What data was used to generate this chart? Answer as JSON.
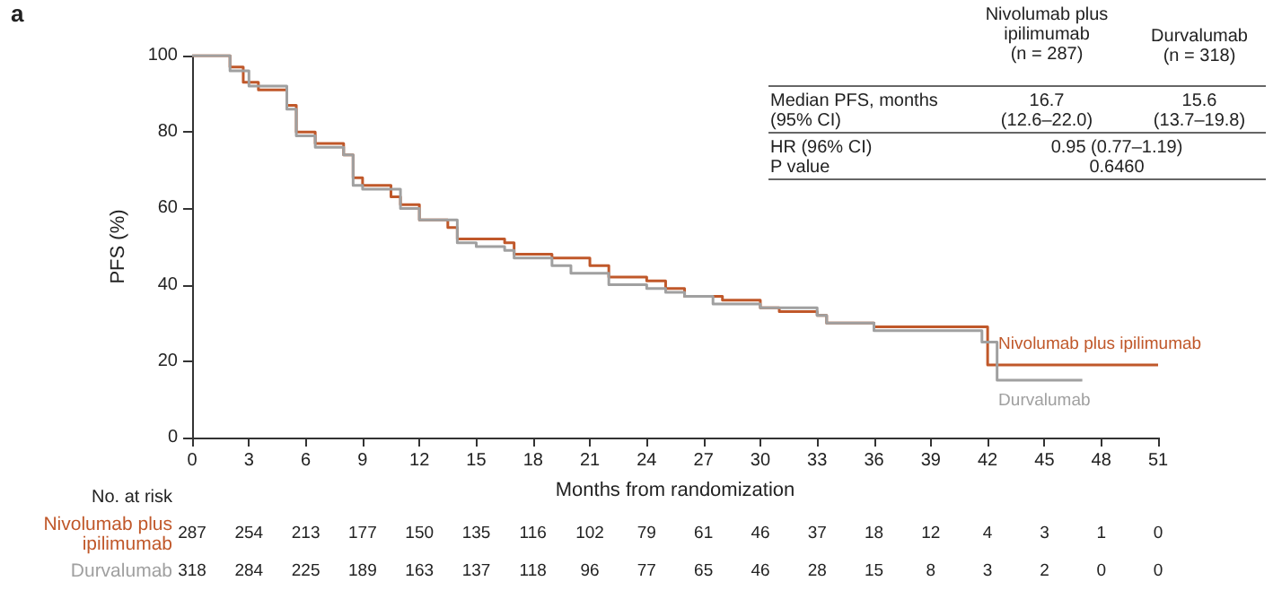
{
  "chart_data": {
    "type": "step",
    "xlabel": "Months from randomization",
    "ylabel": "PFS (%)",
    "xlim": [
      0,
      51
    ],
    "xticks": [
      0,
      3,
      6,
      9,
      12,
      15,
      18,
      21,
      24,
      27,
      30,
      33,
      36,
      39,
      42,
      45,
      48,
      51
    ],
    "ylim": [
      0,
      100
    ],
    "yticks": [
      0,
      20,
      40,
      60,
      80,
      100
    ],
    "grid": false,
    "legend": false,
    "marker": "none",
    "line_style": "solid",
    "series": [
      {
        "name": "Nivolumab plus ipilimumab",
        "color": "#c0582a",
        "x": [
          0,
          2,
          2.7,
          3.5,
          5,
          5.5,
          6.5,
          8,
          8.5,
          9,
          10.5,
          11,
          12,
          13.5,
          14,
          16.5,
          17,
          19,
          21,
          22,
          24,
          25,
          26,
          28,
          30,
          31,
          33,
          33.5,
          36,
          41.7,
          42,
          51
        ],
        "values": [
          100,
          97,
          93,
          91,
          87,
          80,
          77,
          74,
          68,
          66,
          63,
          61,
          57,
          55,
          52,
          51,
          48,
          47,
          45,
          42,
          41,
          39,
          37,
          36,
          34,
          33,
          32,
          30,
          29,
          29,
          19,
          19
        ]
      },
      {
        "name": "Durvalumab",
        "color": "#a0a0a0",
        "x": [
          0,
          2,
          3,
          5,
          5.5,
          6.5,
          8,
          8.5,
          9,
          11,
          12,
          14,
          15,
          16.5,
          17,
          19,
          20,
          22,
          24,
          25,
          26,
          27.5,
          30,
          33,
          33.5,
          36,
          41.5,
          41.7,
          42.5,
          47
        ],
        "values": [
          100,
          96,
          92,
          86,
          79,
          76,
          74,
          66,
          65,
          60,
          57,
          51,
          50,
          49,
          47,
          45,
          43,
          40,
          39,
          38,
          37,
          35,
          34,
          32,
          30,
          28,
          28,
          25,
          15,
          15
        ]
      }
    ],
    "annotations": [
      "a",
      "Nivolumab plus\nipilimumab\n(n = 287)",
      "Durvalumab\n(n = 318)",
      "Median PFS, months\n(95% CI)",
      "16.7\n(12.6–22.0)",
      "15.6\n(13.7–19.8)",
      "HR (96% CI)\nP value",
      "0.95 (0.77–1.19)\n0.6460",
      "No. at risk",
      "287 254 213 177 150 135 116 102 79 61 46 37 18 12 4 3 1 0",
      "318 284 225 189 163 137 118 96 77 65 46 28 15 8 3 2 0 0"
    ]
  }
}
